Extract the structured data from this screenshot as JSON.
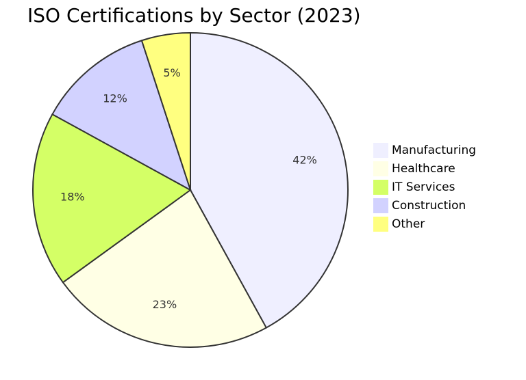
{
  "chart_data": {
    "type": "pie",
    "title": "ISO Certifications by Sector (2023)",
    "slices": [
      {
        "label": "Manufacturing",
        "value": 42,
        "display": "42%",
        "color": "#EFEFFF"
      },
      {
        "label": "Healthcare",
        "value": 23,
        "display": "23%",
        "color": "#FFFFE5"
      },
      {
        "label": "IT Services",
        "value": 18,
        "display": "18%",
        "color": "#D4FF66"
      },
      {
        "label": "Construction",
        "value": 12,
        "display": "12%",
        "color": "#D2D2FF"
      },
      {
        "label": "Other",
        "value": 5,
        "display": "5%",
        "color": "#FFFF80"
      }
    ],
    "legend_position": "right",
    "stroke_color": "#333333"
  }
}
